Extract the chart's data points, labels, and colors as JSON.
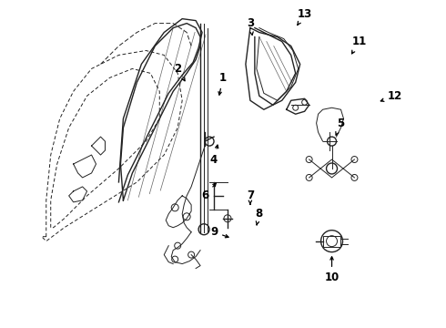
{
  "bg_color": "#ffffff",
  "line_color": "#222222",
  "label_color": "#000000",
  "label_fontsize": 8.5,
  "figsize": [
    4.9,
    3.6
  ],
  "dpi": 100,
  "xlim": [
    0,
    49
  ],
  "ylim": [
    0,
    36
  ],
  "labels": {
    "1": [
      24.5,
      27.5,
      24.0,
      25.2
    ],
    "2": [
      19.5,
      28.5,
      20.5,
      26.8
    ],
    "3": [
      27.5,
      33.5,
      27.8,
      31.8
    ],
    "4": [
      23.5,
      18.5,
      24.0,
      20.5
    ],
    "5": [
      37.5,
      22.5,
      36.8,
      20.8
    ],
    "6": [
      22.5,
      14.5,
      24.0,
      16.2
    ],
    "7": [
      27.5,
      14.5,
      27.5,
      13.5
    ],
    "8": [
      28.5,
      12.5,
      28.2,
      11.2
    ],
    "9": [
      23.5,
      10.5,
      25.5,
      9.8
    ],
    "10": [
      36.5,
      5.5,
      36.5,
      8.2
    ],
    "11": [
      39.5,
      31.5,
      38.5,
      29.8
    ],
    "12": [
      43.5,
      25.5,
      41.5,
      24.8
    ],
    "13": [
      33.5,
      34.5,
      32.5,
      33.0
    ]
  }
}
